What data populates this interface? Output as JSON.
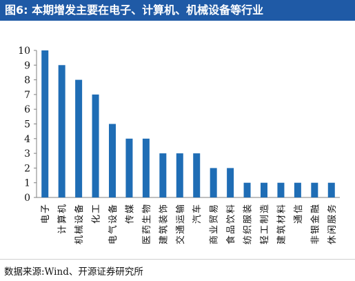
{
  "header": {
    "title": "图6:  本期增发主要在电子、计算机、机械设备等行业"
  },
  "footer": {
    "source": "数据来源:Wind、开源证券研究所"
  },
  "colors": {
    "header_bg": "#1f5aa6",
    "bar": "#1f6db5",
    "axis": "#7f7f7f"
  },
  "chart_data": {
    "type": "bar",
    "categories": [
      "电子",
      "计算机",
      "机械设备",
      "化工",
      "电气设备",
      "传媒",
      "医药生物",
      "建筑装饰",
      "交通运输",
      "汽车",
      "商业贸易",
      "食品饮料",
      "纺织服装",
      "轻工制造",
      "建筑材料",
      "通信",
      "非银金融",
      "休闲服务"
    ],
    "values": [
      10,
      9,
      8,
      7,
      5,
      4,
      4,
      3,
      3,
      3,
      2,
      2,
      1,
      1,
      1,
      1,
      1,
      1
    ],
    "ylim": [
      0,
      10
    ],
    "yticks": [
      0,
      1,
      2,
      3,
      4,
      5,
      6,
      7,
      8,
      9,
      10
    ],
    "grid": false,
    "legend": "none"
  }
}
